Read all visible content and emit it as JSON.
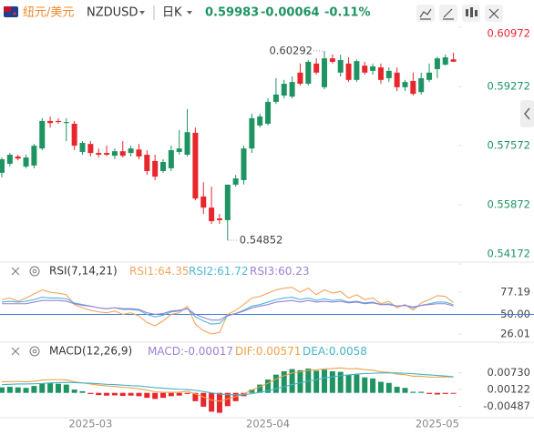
{
  "header": {
    "pair": "纽元/美元",
    "symbol": "NZDUSD",
    "period": "日K",
    "change": -0.00064,
    "change_pct": {
      "value": -0.11,
      "label": "-0.11%"
    }
  },
  "chart_data": [
    {
      "type": "candlestick",
      "categories": [
        null,
        null,
        null,
        null,
        null,
        null,
        null,
        null,
        null,
        null,
        null,
        "2025-03",
        null,
        null,
        null,
        null,
        null,
        null,
        null,
        null,
        null,
        null,
        null,
        null,
        null,
        null,
        null,
        null,
        null,
        null,
        null,
        null,
        null,
        "2025-04",
        null,
        null,
        null,
        null,
        null,
        null,
        null,
        null,
        null,
        null,
        null,
        null,
        null,
        null,
        null,
        null,
        null,
        null,
        null,
        null,
        "2025-05",
        null,
        null
      ],
      "open": [
        0.5679,
        0.5705,
        0.5726,
        0.5697,
        0.57,
        0.5749,
        0.5828,
        0.5828,
        0.5822,
        0.582,
        0.5739,
        0.5762,
        0.5736,
        0.5736,
        0.5728,
        0.5741,
        0.5736,
        0.5746,
        0.5731,
        0.5713,
        0.5684,
        0.5692,
        0.5739,
        0.5731,
        0.5794,
        0.5611,
        0.5579,
        0.5548,
        0.5543,
        0.5645,
        0.5658,
        0.5749,
        0.5815,
        0.582,
        0.5883,
        0.5901,
        0.5898,
        0.5967,
        0.5935,
        0.5993,
        0.5925,
        0.6008,
        0.5967,
        0.5993,
        0.5946,
        0.5987,
        0.5972,
        0.5982,
        0.5951,
        0.5967,
        0.5925,
        0.5943,
        0.5911,
        0.5946,
        0.5977,
        0.599,
        0.6005
      ],
      "high": [
        0.5723,
        0.5736,
        0.5731,
        0.5731,
        0.5762,
        0.5836,
        0.5841,
        0.5836,
        0.5836,
        0.5828,
        0.577,
        0.577,
        0.5749,
        0.5757,
        0.5749,
        0.577,
        0.5757,
        0.5762,
        0.5744,
        0.5731,
        0.5718,
        0.5757,
        0.5802,
        0.5862,
        0.5809,
        0.5652,
        0.5639,
        0.5561,
        0.5645,
        0.5673,
        0.5757,
        0.5849,
        0.5849,
        0.5893,
        0.5951,
        0.5946,
        0.5956,
        0.5993,
        0.6003,
        0.6008,
        0.60292,
        0.6019,
        0.6019,
        0.6011,
        0.6005,
        0.5998,
        0.5993,
        0.5993,
        0.5982,
        0.5982,
        0.5946,
        0.5967,
        0.5967,
        0.5993,
        0.6013,
        0.6019,
        0.6024
      ],
      "low": [
        0.5666,
        0.5697,
        0.5715,
        0.5692,
        0.5692,
        0.5744,
        0.5809,
        0.582,
        0.577,
        0.5744,
        0.5731,
        0.5726,
        0.5723,
        0.5726,
        0.5718,
        0.5723,
        0.5726,
        0.5718,
        0.5673,
        0.5658,
        0.5679,
        0.5684,
        0.5731,
        0.5726,
        0.56,
        0.5561,
        0.5532,
        0.5532,
        0.54852,
        0.5639,
        0.5645,
        0.5736,
        0.5809,
        0.5815,
        0.5877,
        0.5893,
        0.5893,
        0.593,
        0.593,
        0.5961,
        0.5919,
        0.5993,
        0.5956,
        0.594,
        0.594,
        0.5961,
        0.5961,
        0.5935,
        0.594,
        0.5914,
        0.5914,
        0.5901,
        0.5904,
        0.594,
        0.5951,
        0.5987,
        0.5998
      ],
      "close": [
        0.5718,
        0.5731,
        0.572,
        0.5723,
        0.5757,
        0.5828,
        0.5822,
        0.5825,
        0.5825,
        0.5757,
        0.5765,
        0.5736,
        0.5731,
        0.5731,
        0.5741,
        0.5728,
        0.5749,
        0.5726,
        0.5684,
        0.5668,
        0.571,
        0.5744,
        0.5749,
        0.5796,
        0.5605,
        0.5579,
        0.554,
        0.5543,
        0.5645,
        0.5663,
        0.5749,
        0.5836,
        0.5841,
        0.5883,
        0.5904,
        0.5935,
        0.594,
        0.5935,
        0.5998,
        0.5967,
        0.6008,
        0.5998,
        0.6003,
        0.5946,
        0.6,
        0.5967,
        0.5985,
        0.5946,
        0.5972,
        0.5925,
        0.594,
        0.5906,
        0.5951,
        0.5967,
        0.6008,
        0.6011,
        0.59983
      ],
      "up_color": "#1f9463",
      "down_color": "#e8262d",
      "ylim": [
        0.54172,
        0.60972
      ],
      "yticks": [
        0.60972,
        0.59272,
        0.57572,
        0.55872,
        0.54172
      ]
    },
    {
      "type": "line",
      "title": "RSI(7,14,21)",
      "series": [
        {
          "name": "RSI1:",
          "color": "#f4a55e",
          "values": [
            68,
            70,
            66,
            70,
            75,
            80,
            77,
            76,
            74,
            62,
            58,
            55,
            53,
            52,
            54,
            50,
            52,
            48,
            40,
            36,
            42,
            50,
            52,
            60,
            38,
            30,
            26,
            28,
            50,
            55,
            62,
            70,
            72,
            76,
            80,
            82,
            83,
            77,
            82,
            74,
            80,
            76,
            78,
            70,
            74,
            68,
            70,
            63,
            66,
            58,
            62,
            55,
            64,
            68,
            73,
            72,
            64.35
          ]
        },
        {
          "name": "RSI2:",
          "color": "#4fb8d8",
          "values": [
            65,
            66,
            65,
            66,
            68,
            71,
            70,
            70,
            69,
            64,
            62,
            60,
            58,
            57,
            58,
            56,
            56,
            55,
            50,
            47,
            49,
            53,
            54,
            57,
            47,
            42,
            38,
            39,
            48,
            51,
            55,
            60,
            62,
            65,
            68,
            70,
            71,
            68,
            70,
            67,
            69,
            67,
            68,
            65,
            66,
            64,
            65,
            62,
            63,
            60,
            61,
            58,
            61,
            63,
            65,
            65,
            61.72
          ]
        },
        {
          "name": "RSI3:",
          "color": "#9a80d6",
          "values": [
            63,
            63,
            63,
            63,
            65,
            67,
            67,
            67,
            66,
            63,
            61,
            60,
            58,
            57,
            58,
            57,
            57,
            56,
            52,
            50,
            51,
            54,
            55,
            57,
            50,
            46,
            43,
            43,
            49,
            51,
            54,
            58,
            60,
            62,
            65,
            66,
            67,
            65,
            67,
            65,
            66,
            65,
            66,
            64,
            65,
            63,
            64,
            62,
            62,
            60,
            61,
            59,
            61,
            62,
            63,
            63,
            60.23
          ]
        }
      ],
      "ylim": [
        17.11,
        109.46
      ],
      "yticks": [
        77.19,
        {
          "value": 50,
          "label": "50.00"
        },
        26.01
      ],
      "hlines": [
        50
      ],
      "hline_color": "#3d7be0"
    },
    {
      "type": "macd",
      "title": "MACD(12,26,9)",
      "series": [
        {
          "name": "MACD:",
          "color": "#9a80d6",
          "values": [
            0.002,
            0.0022,
            0.002,
            0.0018,
            0.0025,
            0.0035,
            0.0036,
            0.0033,
            0.003,
            0.0012,
            0.0006,
            -0.0004,
            -0.0008,
            -0.001,
            -0.0009,
            -0.0011,
            -0.001,
            -0.0012,
            -0.0018,
            -0.0022,
            -0.0018,
            -0.0012,
            -0.001,
            -0.0004,
            -0.003,
            -0.005,
            -0.0068,
            -0.0072,
            -0.0048,
            -0.003,
            -0.0012,
            0.0012,
            0.003,
            0.0048,
            0.0066,
            0.0078,
            0.0086,
            0.0082,
            0.0088,
            0.008,
            0.0084,
            0.0078,
            0.0076,
            0.0066,
            0.0066,
            0.0056,
            0.0052,
            0.004,
            0.0036,
            0.0022,
            0.0018,
            0.0004,
            0.0004,
            -0.0004,
            -0.0006,
            -0.0004,
            -0.00017
          ]
        },
        {
          "name": "DIF:",
          "color": "#f0a04b",
          "values": [
            0.004,
            0.0041,
            0.0041,
            0.004,
            0.0042,
            0.0046,
            0.0048,
            0.0048,
            0.0047,
            0.004,
            0.0036,
            0.0032,
            0.0028,
            0.0025,
            0.0023,
            0.002,
            0.0018,
            0.0015,
            0.001,
            0.0004,
            0.0002,
            0.0002,
            0.0002,
            0.0006,
            -0.0004,
            -0.0015,
            -0.0026,
            -0.003,
            -0.0022,
            -0.0014,
            -0.0004,
            0.001,
            0.0022,
            0.0035,
            0.005,
            0.0062,
            0.0072,
            0.0076,
            0.0082,
            0.0083,
            0.0087,
            0.0088,
            0.009,
            0.0087,
            0.0088,
            0.0084,
            0.0082,
            0.0076,
            0.0074,
            0.0068,
            0.0066,
            0.006,
            0.006,
            0.0057,
            0.0057,
            0.0058,
            0.00571
          ]
        },
        {
          "name": "DEA:",
          "color": "#45b5c6",
          "values": [
            0.003,
            0.0031,
            0.0032,
            0.0032,
            0.0033,
            0.0034,
            0.0036,
            0.0037,
            0.0038,
            0.0037,
            0.0036,
            0.0035,
            0.0033,
            0.0031,
            0.003,
            0.0028,
            0.0026,
            0.0025,
            0.0022,
            0.0019,
            0.0017,
            0.0015,
            0.0013,
            0.0012,
            0.0009,
            0.0005,
            0.0,
            -0.0004,
            -0.0006,
            -0.0007,
            -0.0006,
            -0.0003,
            0.0002,
            0.0008,
            0.0015,
            0.0022,
            0.003,
            0.0036,
            0.0043,
            0.0048,
            0.0054,
            0.0058,
            0.0062,
            0.0065,
            0.0068,
            0.007,
            0.0071,
            0.0072,
            0.0072,
            0.0072,
            0.0071,
            0.0069,
            0.0067,
            0.0065,
            0.0063,
            0.0061,
            0.0058
          ]
        }
      ],
      "up_color": "#1f9463",
      "down_color": "#e8262d",
      "ylim": [
        -0.00865,
        0.01767
      ],
      "yticks": [
        {
          "value": 0.0073,
          "label": "0.00730"
        },
        0.00122,
        -0.00487
      ]
    }
  ]
}
